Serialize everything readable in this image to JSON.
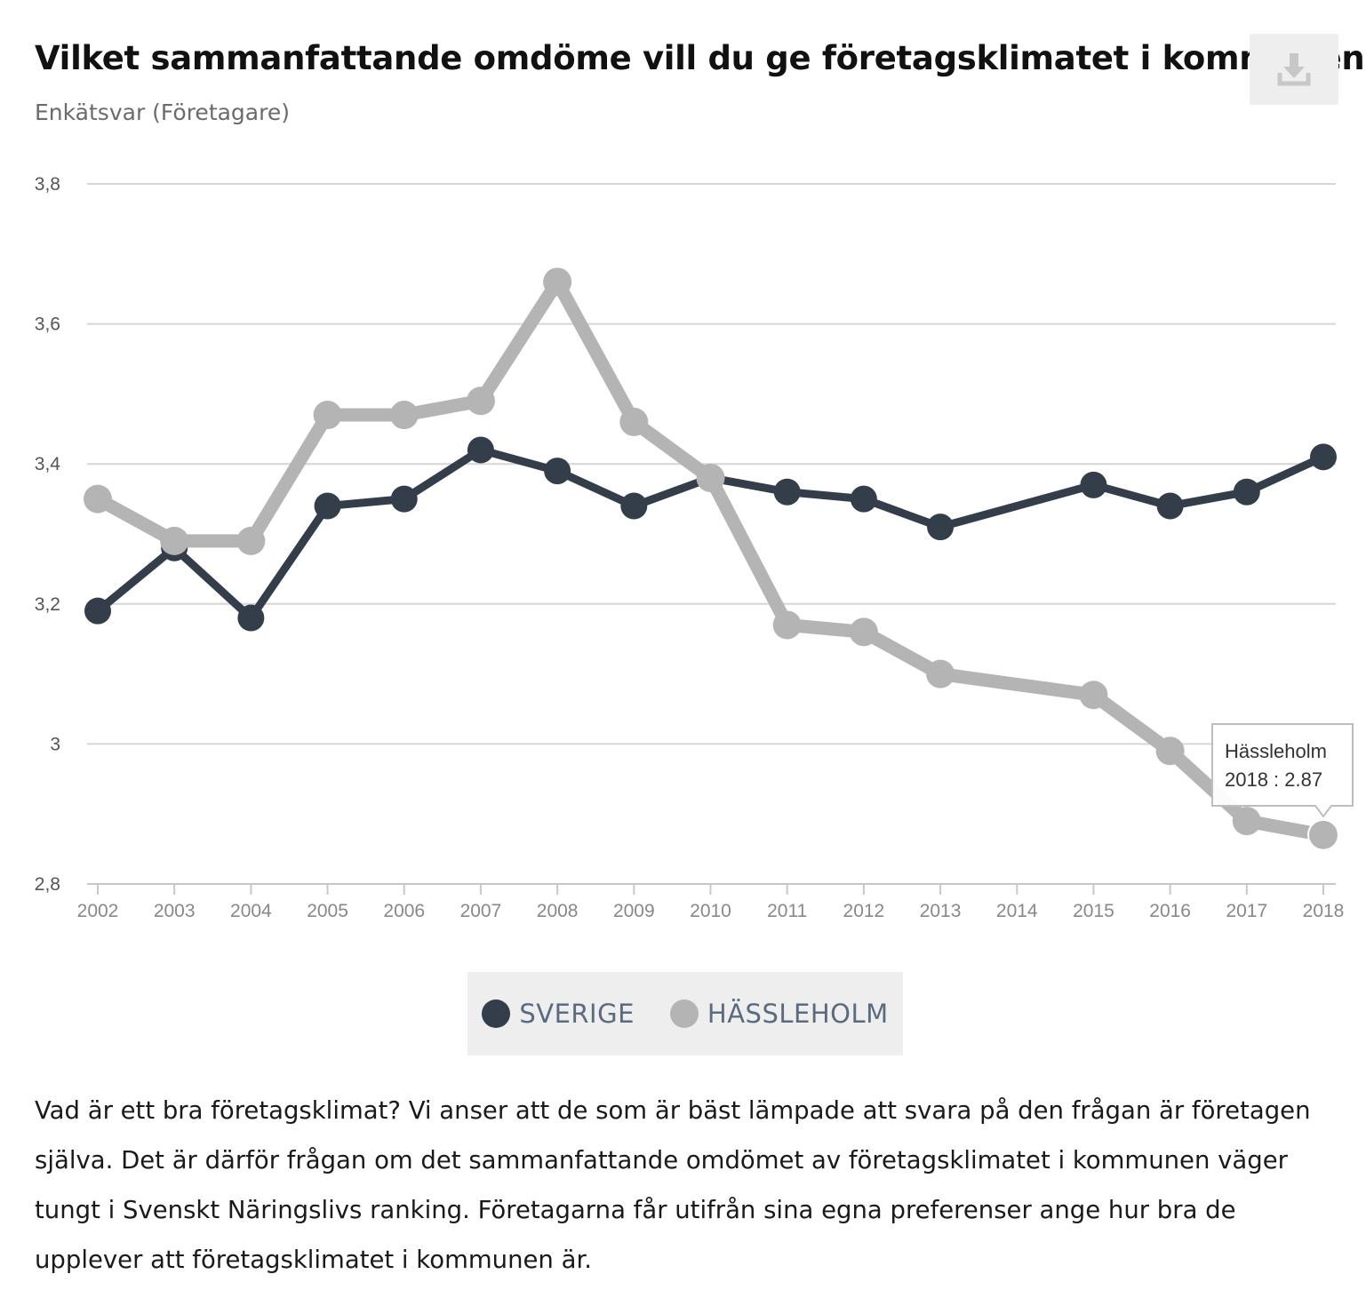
{
  "header": {
    "title": "Vilket sammanfattande omdöme vill du ge företagsklimatet i kommunen",
    "subtitle": "Enkätsvar (Företagare)"
  },
  "toolbar": {
    "download_icon": "download-icon"
  },
  "chart_data": {
    "type": "line",
    "title": "Vilket sammanfattande omdöme vill du ge företagsklimatet i kommunen",
    "subtitle": "Enkätsvar (Företagare)",
    "xlabel": "",
    "ylabel": "",
    "ylim": [
      2.8,
      3.8
    ],
    "yticks": [
      "2,8",
      "3",
      "3,2",
      "3,4",
      "3,6",
      "3,8"
    ],
    "categories": [
      "2002",
      "2003",
      "2004",
      "2005",
      "2006",
      "2007",
      "2008",
      "2009",
      "2010",
      "2011",
      "2012",
      "2013",
      "2014",
      "2015",
      "2016",
      "2017",
      "2018"
    ],
    "grid": true,
    "legend_position": "bottom",
    "series": [
      {
        "name": "SVERIGE",
        "color": "#343e4b",
        "values": [
          3.19,
          3.28,
          3.18,
          3.34,
          3.35,
          3.42,
          3.39,
          3.34,
          3.38,
          3.36,
          3.35,
          3.31,
          null,
          3.37,
          3.34,
          3.36,
          3.41
        ]
      },
      {
        "name": "HÄSSLEHOLM",
        "color": "#b4b4b4",
        "values": [
          3.35,
          3.29,
          3.29,
          3.47,
          3.47,
          3.49,
          3.66,
          3.46,
          3.38,
          3.17,
          3.16,
          3.1,
          null,
          3.07,
          2.99,
          2.89,
          2.87
        ]
      }
    ],
    "tooltip": {
      "series": "Hässleholm",
      "text": "2018 : 2.87",
      "category": "2018",
      "value": 2.87
    }
  },
  "description": "Vad är ett bra företagsklimat? Vi anser att de som är bäst lämpade att svara på den frågan är företagen själva. Det är därför frågan om det sammanfattande omdömet av företagsklimatet i kommunen väger tungt i Svenskt Näringslivs ranking. Företagarna får utifrån sina egna preferenser ange hur bra de upplever att företagsklimatet i kommunen är."
}
